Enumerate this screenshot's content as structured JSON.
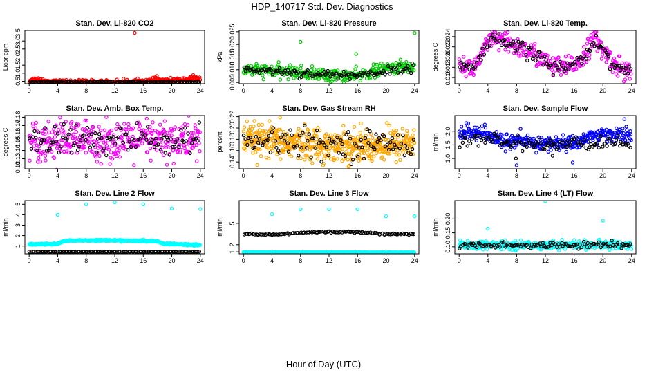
{
  "figure": {
    "title": "HDP_140717  Std. Dev. Diagnostics",
    "xlabel": "Hour of Day (UTC)"
  },
  "chart_data": [
    {
      "id": "co2",
      "type": "scatter",
      "title": "Stan. Dev. Li-820 CO2",
      "ylabel": "Licor ppm",
      "xlim": [
        -0.6,
        24.6
      ],
      "ylim": [
        0.35,
        3.65
      ],
      "xticks": [
        "0",
        "4",
        "8",
        "12",
        "16",
        "20",
        "24"
      ],
      "yticks": [
        "0.5",
        "1.0",
        "1.5",
        "2.0",
        "2.5",
        "3.0",
        "3.5"
      ],
      "series": [
        {
          "color": "#ff0000",
          "trend": [
            [
              0,
              0.55
            ],
            [
              1,
              0.62
            ],
            [
              2,
              0.56
            ],
            [
              3,
              0.45
            ],
            [
              6,
              0.45
            ],
            [
              10,
              0.44
            ],
            [
              14,
              0.46
            ],
            [
              18,
              0.55
            ],
            [
              20,
              0.52
            ],
            [
              23,
              0.68
            ],
            [
              24,
              0.62
            ]
          ],
          "spread": 0.07,
          "n": 360,
          "outliers": [
            [
              14.8,
              3.5
            ],
            [
              17.7,
              0.75
            ],
            [
              17.9,
              0.82
            ],
            [
              23,
              0.88
            ]
          ]
        },
        {
          "color": "#000000",
          "trend": [
            [
              0,
              0.45
            ],
            [
              24,
              0.45
            ]
          ],
          "spread": 0.02,
          "n": 120,
          "outliers": []
        }
      ]
    },
    {
      "id": "pressure",
      "type": "scatter",
      "title": "Stan. Dev. Li-820 Pressure",
      "ylabel": "kPa",
      "xlim": [
        -0.6,
        24.6
      ],
      "ylim": [
        0.0045,
        0.0255
      ],
      "xticks": [
        "0",
        "4",
        "8",
        "12",
        "16",
        "20",
        "24"
      ],
      "yticks": [
        "0.005",
        "0.010",
        "0.015",
        "0.020",
        "0.025"
      ],
      "series": [
        {
          "color": "#00cc00",
          "trend": [
            [
              0,
              0.01
            ],
            [
              4,
              0.0095
            ],
            [
              8,
              0.0088
            ],
            [
              12,
              0.0078
            ],
            [
              16,
              0.0075
            ],
            [
              18,
              0.0092
            ],
            [
              21,
              0.0108
            ],
            [
              24,
              0.0112
            ]
          ],
          "spread": 0.0012,
          "n": 360,
          "outliers": [
            [
              8,
              0.021
            ],
            [
              15.8,
              0.0162
            ],
            [
              24,
              0.0245
            ],
            [
              11.8,
              0.006
            ]
          ]
        },
        {
          "color": "#000000",
          "trend": [
            [
              0,
              0.0102
            ],
            [
              6,
              0.0092
            ],
            [
              12,
              0.008
            ],
            [
              16,
              0.0079
            ],
            [
              24,
              0.011
            ]
          ],
          "spread": 0.0008,
          "n": 120,
          "outliers": []
        }
      ]
    },
    {
      "id": "temp",
      "type": "scatter",
      "title": "Stan. Dev. Li-820 Temp.",
      "ylabel": "degrees C",
      "xlim": [
        -0.6,
        24.6
      ],
      "ylim": [
        0.0148,
        0.0252
      ],
      "xticks": [
        "0",
        "4",
        "8",
        "12",
        "16",
        "20",
        "24"
      ],
      "yticks": [
        "0.016",
        "0.018",
        "0.020",
        "0.022",
        "0.024"
      ],
      "series": [
        {
          "color": "#ff00ff",
          "trend": [
            [
              0,
              0.0184
            ],
            [
              2,
              0.0178
            ],
            [
              4.5,
              0.0236
            ],
            [
              7,
              0.0225
            ],
            [
              10,
              0.021
            ],
            [
              13,
              0.0182
            ],
            [
              15,
              0.0178
            ],
            [
              17,
              0.0195
            ],
            [
              18.7,
              0.0238
            ],
            [
              20,
              0.0212
            ],
            [
              22,
              0.0182
            ],
            [
              24,
              0.0168
            ]
          ],
          "spread": 0.001,
          "n": 360,
          "outliers": []
        },
        {
          "color": "#000000",
          "trend": [
            [
              0,
              0.0184
            ],
            [
              2,
              0.0178
            ],
            [
              4.5,
              0.0233
            ],
            [
              7,
              0.0224
            ],
            [
              10,
              0.0209
            ],
            [
              13,
              0.0181
            ],
            [
              15,
              0.0178
            ],
            [
              17,
              0.0195
            ],
            [
              18.7,
              0.0234
            ],
            [
              20,
              0.0211
            ],
            [
              22,
              0.0182
            ],
            [
              24,
              0.0168
            ]
          ],
          "spread": 0.0007,
          "n": 120,
          "outliers": []
        }
      ]
    },
    {
      "id": "ambbox",
      "type": "scatter",
      "title": "Stan. Dev. Amb. Box Temp.",
      "ylabel": "degrees C",
      "xlim": [
        -0.6,
        24.6
      ],
      "ylim": [
        0.118,
        0.182
      ],
      "xticks": [
        "0",
        "4",
        "8",
        "12",
        "16",
        "20",
        "24"
      ],
      "yticks": [
        "0.12",
        "0.13",
        "0.14",
        "0.15",
        "0.16",
        "0.17",
        "0.18"
      ],
      "series": [
        {
          "color": "#ff00ff",
          "trend": [
            [
              0,
              0.152
            ],
            [
              24,
              0.152
            ]
          ],
          "spread": 0.012,
          "n": 420,
          "outliers": []
        },
        {
          "color": "#000000",
          "trend": [
            [
              0,
              0.152
            ],
            [
              24,
              0.152
            ]
          ],
          "spread": 0.01,
          "n": 110,
          "outliers": []
        }
      ]
    },
    {
      "id": "gasrh",
      "type": "scatter",
      "title": "Stan. Dev. Gas Stream RH",
      "ylabel": "percent",
      "xlim": [
        -0.6,
        24.6
      ],
      "ylim": [
        0.128,
        0.222
      ],
      "xticks": [
        "0",
        "4",
        "8",
        "12",
        "16",
        "20",
        "24"
      ],
      "yticks": [
        "0.14",
        "0.16",
        "0.18",
        "0.20",
        "0.22"
      ],
      "series": [
        {
          "color": "#ffa500",
          "trend": [
            [
              0,
              0.178
            ],
            [
              6,
              0.174
            ],
            [
              12,
              0.17
            ],
            [
              18,
              0.168
            ],
            [
              24,
              0.175
            ]
          ],
          "spread": 0.014,
          "n": 600,
          "outliers": []
        },
        {
          "color": "#000000",
          "trend": [
            [
              0,
              0.176
            ],
            [
              12,
              0.172
            ],
            [
              24,
              0.173
            ]
          ],
          "spread": 0.012,
          "n": 110,
          "outliers": []
        }
      ]
    },
    {
      "id": "sample",
      "type": "scatter",
      "title": "Stan. Dev. Sample Flow",
      "ylabel": "ml/min",
      "xlim": [
        -0.6,
        24.6
      ],
      "ylim": [
        0.62,
        2.58
      ],
      "xticks": [
        "0",
        "4",
        "8",
        "12",
        "16",
        "20",
        "24"
      ],
      "yticks": [
        "1.0",
        "1.5",
        "2.0"
      ],
      "series": [
        {
          "color": "#0000ff",
          "trend": [
            [
              0,
              1.95
            ],
            [
              3,
              1.95
            ],
            [
              5,
              1.7
            ],
            [
              8,
              1.6
            ],
            [
              12,
              1.55
            ],
            [
              16,
              1.55
            ],
            [
              18,
              1.8
            ],
            [
              21,
              1.9
            ],
            [
              24,
              1.8
            ]
          ],
          "spread": 0.14,
          "n": 380,
          "outliers": [
            [
              8,
              0.75
            ],
            [
              15.8,
              0.85
            ],
            [
              23,
              2.45
            ],
            [
              1,
              2.3
            ]
          ]
        },
        {
          "color": "#000000",
          "trend": [
            [
              0,
              1.7
            ],
            [
              6,
              1.62
            ],
            [
              12,
              1.5
            ],
            [
              18,
              1.55
            ],
            [
              24,
              1.58
            ]
          ],
          "spread": 0.12,
          "n": 110,
          "outliers": [
            [
              7.9,
              1.0
            ],
            [
              13,
              1.1
            ]
          ]
        }
      ]
    },
    {
      "id": "line2",
      "type": "scatter",
      "title": "Stan. Dev. Line 2 Flow",
      "ylabel": "ml/min",
      "xlim": [
        -0.6,
        24.6
      ],
      "ylim": [
        0.25,
        5.35
      ],
      "xticks": [
        "0",
        "4",
        "8",
        "12",
        "16",
        "20",
        "24"
      ],
      "yticks": [
        "1",
        "2",
        "3",
        "4",
        "5"
      ],
      "series": [
        {
          "color": "#00ffff",
          "trend": [
            [
              0,
              1.15
            ],
            [
              4,
              1.2
            ],
            [
              5,
              1.5
            ],
            [
              10,
              1.55
            ],
            [
              14,
              1.5
            ],
            [
              18,
              1.45
            ],
            [
              19,
              1.2
            ],
            [
              24,
              1.1
            ]
          ],
          "spread": 0.04,
          "n": 420,
          "outliers": [
            [
              4,
              4.0
            ],
            [
              8,
              5.0
            ],
            [
              12,
              5.2
            ],
            [
              16,
              5.0
            ],
            [
              20,
              4.6
            ],
            [
              24,
              4.55
            ]
          ]
        },
        {
          "color": "#000000",
          "trend": [
            [
              0,
              0.45
            ],
            [
              24,
              0.45
            ]
          ],
          "spread": 0.005,
          "n": 110,
          "outliers": []
        }
      ]
    },
    {
      "id": "line3",
      "type": "scatter",
      "title": "Stan. Dev. Line 3 Flow",
      "ylabel": "ml/min",
      "xlim": [
        -0.6,
        24.6
      ],
      "ylim": [
        0.72,
        8.2
      ],
      "xticks": [
        "0",
        "4",
        "8",
        "12",
        "16",
        "20",
        "24"
      ],
      "yticks": [
        "1",
        "2",
        "5"
      ],
      "series": [
        {
          "color": "#00ffff",
          "trend": [
            [
              0,
              0.95
            ],
            [
              24,
              0.92
            ]
          ],
          "spread": 0.01,
          "n": 400,
          "outliers": [
            [
              4,
              6.3
            ],
            [
              8,
              7.0
            ],
            [
              12,
              7.0
            ],
            [
              16,
              7.0
            ],
            [
              20,
              6.0
            ],
            [
              24,
              6.0
            ]
          ]
        },
        {
          "color": "#000000",
          "trend": [
            [
              0,
              3.5
            ],
            [
              4,
              3.4
            ],
            [
              8,
              3.7
            ],
            [
              12,
              3.8
            ],
            [
              16,
              3.8
            ],
            [
              20,
              3.5
            ],
            [
              24,
              3.45
            ]
          ],
          "spread": 0.06,
          "n": 110,
          "outliers": []
        }
      ]
    },
    {
      "id": "line4",
      "type": "scatter",
      "title": "Stan. Dev. Line 4 (LT) Flow",
      "ylabel": "ml/min",
      "xlim": [
        -0.6,
        24.6
      ],
      "ylim": [
        0.075,
        0.265
      ],
      "xticks": [
        "0",
        "4",
        "8",
        "12",
        "16",
        "20",
        "24"
      ],
      "yticks": [
        "0.10",
        "0.15",
        "0.20"
      ],
      "series": [
        {
          "color": "#00ffff",
          "trend": [
            [
              0,
              0.105
            ],
            [
              24,
              0.107
            ]
          ],
          "spread": 0.007,
          "n": 420,
          "outliers": [
            [
              4,
              0.165
            ],
            [
              12,
              0.263
            ],
            [
              20,
              0.193
            ]
          ]
        },
        {
          "color": "#000000",
          "trend": [
            [
              0,
              0.104
            ],
            [
              24,
              0.108
            ]
          ],
          "spread": 0.006,
          "n": 110,
          "outliers": []
        }
      ]
    }
  ]
}
